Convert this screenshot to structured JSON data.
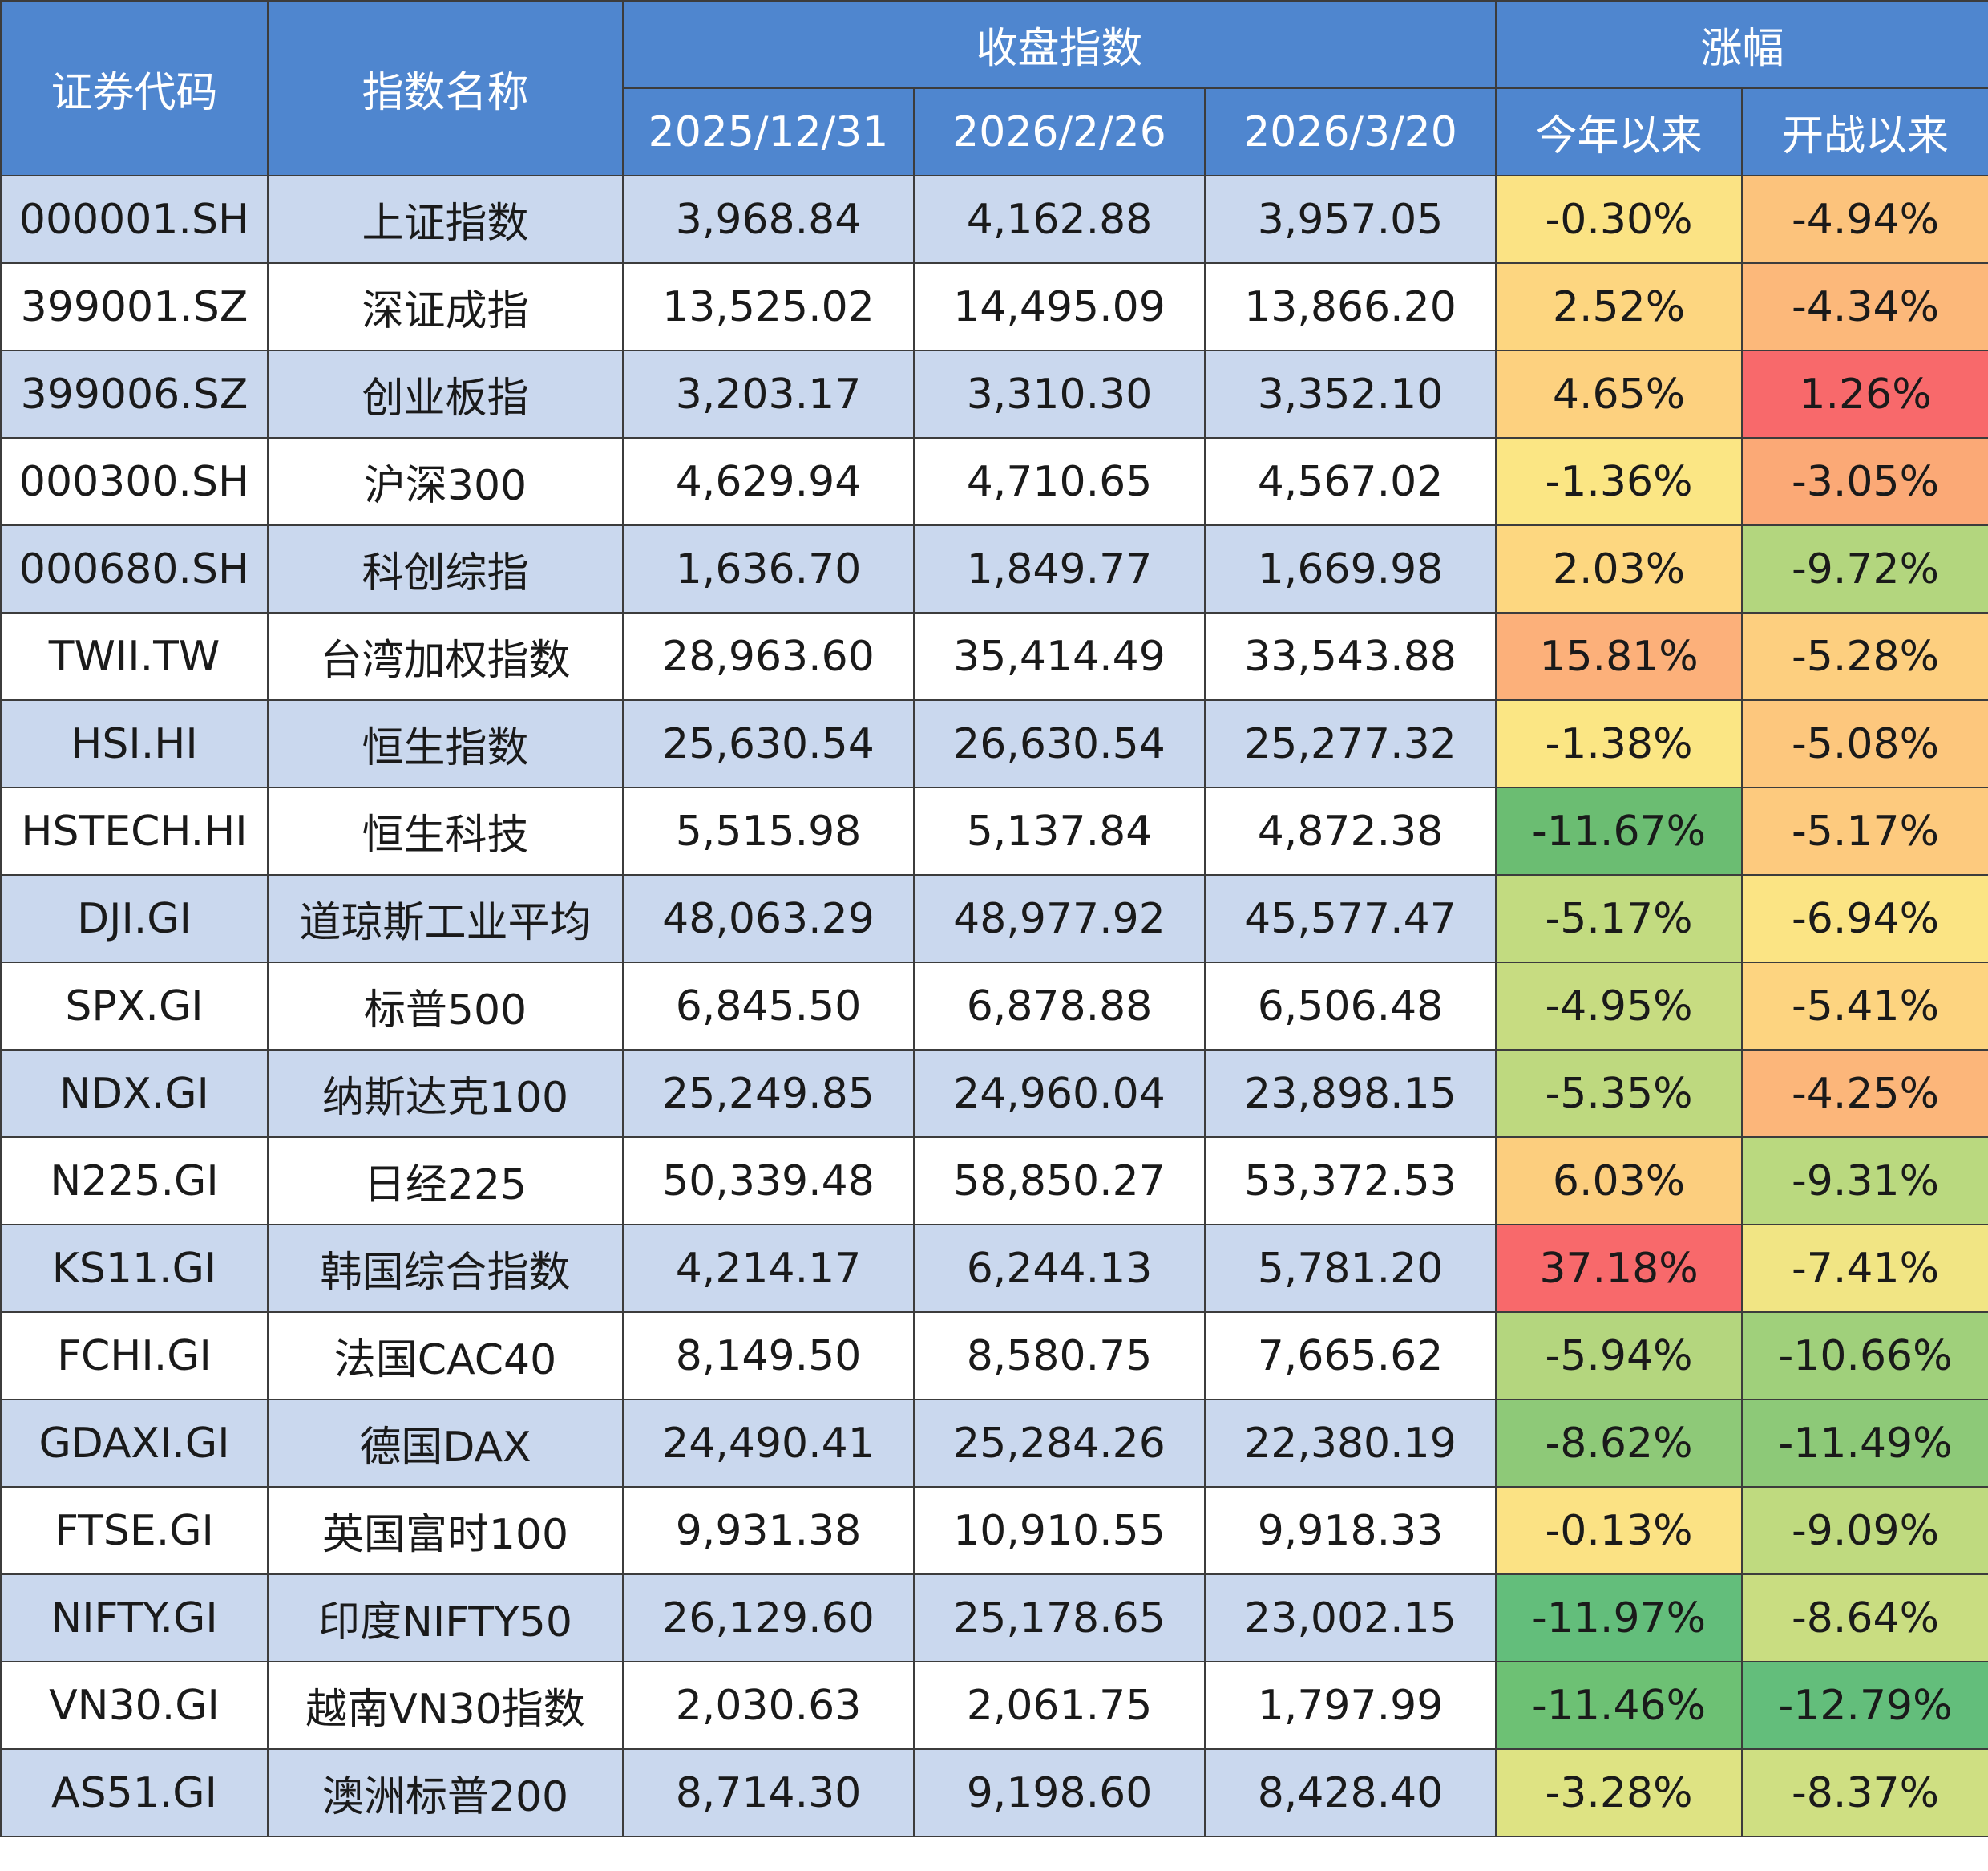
{
  "header": {
    "code": "证券代码",
    "name": "指数名称",
    "close_group": "收盘指数",
    "change_group": "涨幅",
    "dates": [
      "2025/12/31",
      "2026/2/26",
      "2026/3/20"
    ],
    "ytd": "今年以来",
    "since_war": "开战以来"
  },
  "rows": [
    {
      "code": "000001.SH",
      "name": "上证指数",
      "c1": "3,968.84",
      "c2": "4,162.88",
      "c3": "3,957.05",
      "ytd": "-0.30%",
      "war": "-4.94%",
      "ytd_color": "#fbe384",
      "war_color": "#fcc37c"
    },
    {
      "code": "399001.SZ",
      "name": "深证成指",
      "c1": "13,525.02",
      "c2": "14,495.09",
      "c3": "13,866.20",
      "ytd": "2.52%",
      "war": "-4.34%",
      "ytd_color": "#fdd680",
      "war_color": "#fcb87a"
    },
    {
      "code": "399006.SZ",
      "name": "创业板指",
      "c1": "3,203.17",
      "c2": "3,310.30",
      "c3": "3,352.10",
      "ytd": "4.65%",
      "war": "1.26%",
      "ytd_color": "#fdd17f",
      "war_color": "#f8696b"
    },
    {
      "code": "000300.SH",
      "name": "沪深300",
      "c1": "4,629.94",
      "c2": "4,710.65",
      "c3": "4,567.02",
      "ytd": "-1.36%",
      "war": "-3.05%",
      "ytd_color": "#fbe684",
      "war_color": "#fba976"
    },
    {
      "code": "000680.SH",
      "name": "科创综指",
      "c1": "1,636.70",
      "c2": "1,849.77",
      "c3": "1,669.98",
      "ytd": "2.03%",
      "war": "-9.72%",
      "ytd_color": "#fdd780",
      "war_color": "#b3d67e"
    },
    {
      "code": "TWII.TW",
      "name": "台湾加权指数",
      "c1": "28,963.60",
      "c2": "35,414.49",
      "c3": "33,543.88",
      "ytd": "15.81%",
      "war": "-5.28%",
      "ytd_color": "#fcb07a",
      "war_color": "#fdcf7f"
    },
    {
      "code": "HSI.HI",
      "name": "恒生指数",
      "c1": "25,630.54",
      "c2": "26,630.54",
      "c3": "25,277.32",
      "ytd": "-1.38%",
      "war": "-5.08%",
      "ytd_color": "#fbe684",
      "war_color": "#fdc77d"
    },
    {
      "code": "HSTECH.HI",
      "name": "恒生科技",
      "c1": "5,515.98",
      "c2": "5,137.84",
      "c3": "4,872.38",
      "ytd": "-11.67%",
      "war": "-5.17%",
      "ytd_color": "#6bbd72",
      "war_color": "#fdca7e"
    },
    {
      "code": "DJI.GI",
      "name": "道琼斯工业平均",
      "c1": "48,063.29",
      "c2": "48,977.92",
      "c3": "45,577.47",
      "ytd": "-5.17%",
      "war": "-6.94%",
      "ytd_color": "#c2db80",
      "war_color": "#fbe484"
    },
    {
      "code": "SPX.GI",
      "name": "标普500",
      "c1": "6,845.50",
      "c2": "6,878.88",
      "c3": "6,506.48",
      "ytd": "-4.95%",
      "war": "-5.41%",
      "ytd_color": "#c7dc81",
      "war_color": "#fdd480"
    },
    {
      "code": "NDX.GI",
      "name": "纳斯达克100",
      "c1": "25,249.85",
      "c2": "24,960.04",
      "c3": "23,898.15",
      "ytd": "-5.35%",
      "war": "-4.25%",
      "ytd_color": "#bed97f",
      "war_color": "#fcb67a"
    },
    {
      "code": "N225.GI",
      "name": "日经225",
      "c1": "50,339.48",
      "c2": "58,850.27",
      "c3": "53,372.53",
      "ytd": "6.03%",
      "war": "-9.31%",
      "ytd_color": "#fcce7e",
      "war_color": "#bad97f"
    },
    {
      "code": "KS11.GI",
      "name": "韩国综合指数",
      "c1": "4,214.17",
      "c2": "6,244.13",
      "c3": "5,781.20",
      "ytd": "37.18%",
      "war": "-7.41%",
      "ytd_color": "#f8696b",
      "war_color": "#f1e584"
    },
    {
      "code": "FCHI.GI",
      "name": "法国CAC40",
      "c1": "8,149.50",
      "c2": "8,580.75",
      "c3": "7,665.62",
      "ytd": "-5.94%",
      "war": "-10.66%",
      "ytd_color": "#b4d67e",
      "war_color": "#a0d07b"
    },
    {
      "code": "GDAXI.GI",
      "name": "德国DAX",
      "c1": "24,490.41",
      "c2": "25,284.26",
      "c3": "22,380.19",
      "ytd": "-8.62%",
      "war": "-11.49%",
      "ytd_color": "#8ec978",
      "war_color": "#8dc978"
    },
    {
      "code": "FTSE.GI",
      "name": "英国富时100",
      "c1": "9,931.38",
      "c2": "10,910.55",
      "c3": "9,918.33",
      "ytd": "-0.13%",
      "war": "-9.09%",
      "ytd_color": "#fbe284",
      "war_color": "#bfda7f"
    },
    {
      "code": "NIFTY.GI",
      "name": "印度NIFTY50",
      "c1": "26,129.60",
      "c2": "25,178.65",
      "c3": "23,002.15",
      "ytd": "-11.97%",
      "war": "-8.64%",
      "ytd_color": "#63be7b",
      "war_color": "#c9dd81"
    },
    {
      "code": "VN30.GI",
      "name": "越南VN30指数",
      "c1": "2,030.63",
      "c2": "2,061.75",
      "c3": "1,797.99",
      "ytd": "-11.46%",
      "war": "-12.79%",
      "ytd_color": "#6dc174",
      "war_color": "#63be7b"
    },
    {
      "code": "AS51.GI",
      "name": "澳洲标普200",
      "c1": "8,714.30",
      "c2": "9,198.60",
      "c3": "8,428.40",
      "ytd": "-3.28%",
      "war": "-8.37%",
      "ytd_color": "#dee383",
      "war_color": "#cfdf82"
    }
  ]
}
